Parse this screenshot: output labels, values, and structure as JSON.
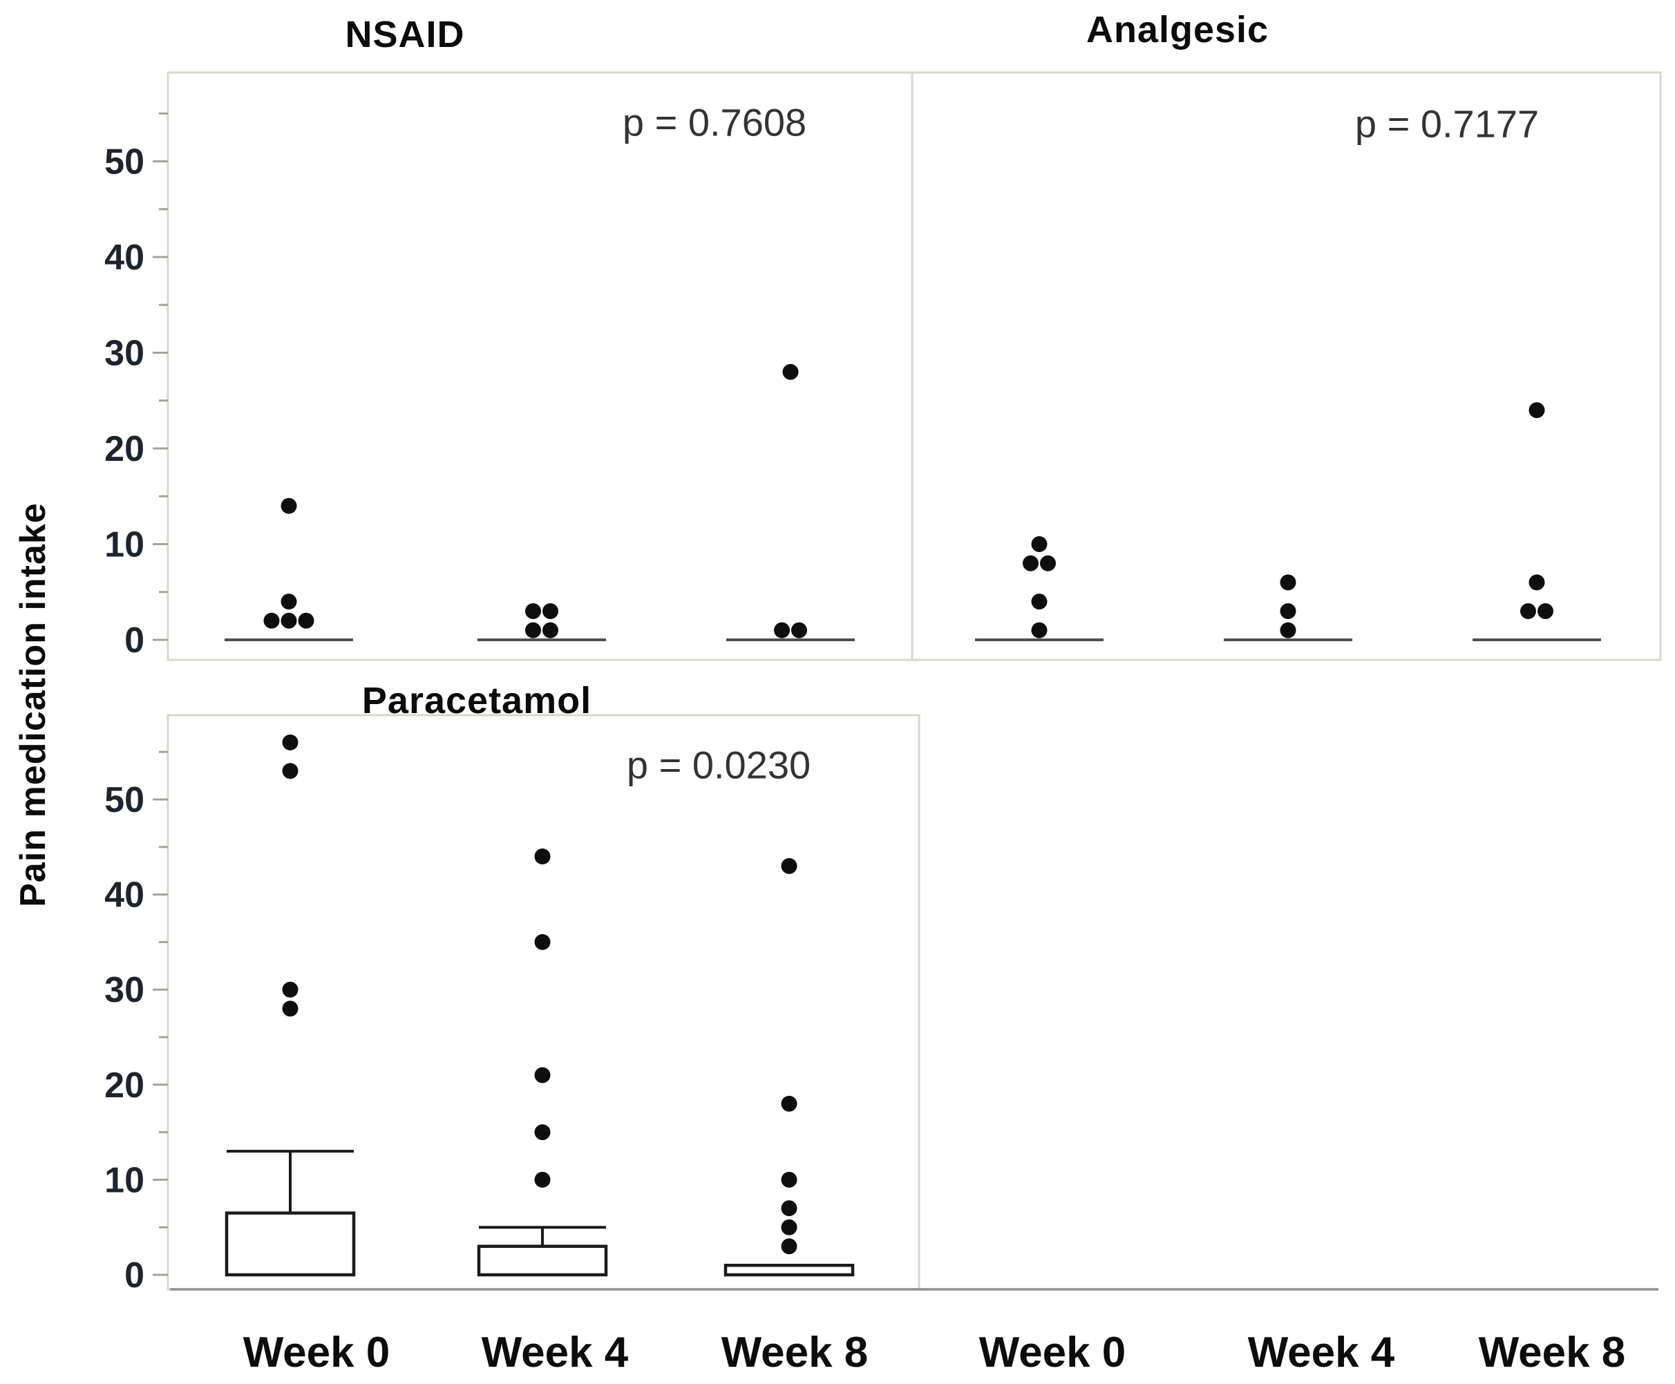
{
  "figure": {
    "ylabel": "Pain medication intake",
    "x_categories": [
      "Week 0",
      "Week 4",
      "Week 8"
    ],
    "y_ticks": [
      0,
      10,
      20,
      30,
      40,
      50
    ],
    "y_minor_ticks": [
      5,
      15,
      25,
      35,
      45,
      55
    ],
    "colors": {
      "dot": "#0e0e0e",
      "box_stroke": "#1a1a1a",
      "median_line": "#4f4f4f",
      "panel_border": "#d9d7cb",
      "axis_baseline": "#8f8f8f",
      "tick": "#a3a39b",
      "tick_label": "#1d242d",
      "week_label": "#0c0c0c"
    }
  },
  "chart_data": [
    {
      "type": "scatter",
      "panel": "top-left",
      "title": "NSAID",
      "p_label": "p = 0.7608",
      "categories": [
        "Week 0",
        "Week 4",
        "Week 8"
      ],
      "ylim": [
        0,
        58
      ],
      "grid": false,
      "median_at": [
        0,
        0,
        0
      ],
      "series": [
        {
          "category": "Week 0",
          "values": [
            14,
            4,
            2,
            2,
            2
          ]
        },
        {
          "category": "Week 4",
          "values": [
            3,
            3,
            1,
            1
          ]
        },
        {
          "category": "Week 8",
          "values": [
            28,
            1,
            1
          ]
        }
      ]
    },
    {
      "type": "scatter",
      "panel": "top-right",
      "title": "Analgesic",
      "p_label": "p = 0.7177",
      "categories": [
        "Week 0",
        "Week 4",
        "Week 8"
      ],
      "ylim": [
        0,
        58
      ],
      "grid": false,
      "median_at": [
        0,
        0,
        0
      ],
      "series": [
        {
          "category": "Week 0",
          "values": [
            10,
            8,
            8,
            4,
            1
          ]
        },
        {
          "category": "Week 4",
          "values": [
            6,
            3,
            1
          ]
        },
        {
          "category": "Week 8",
          "values": [
            24,
            6,
            3,
            3
          ]
        }
      ]
    },
    {
      "type": "box+scatter",
      "panel": "bottom-left",
      "title": "Paracetamol",
      "p_label": "p = 0.0230",
      "categories": [
        "Week 0",
        "Week 4",
        "Week 8"
      ],
      "ylim": [
        0,
        58
      ],
      "grid": false,
      "series": [
        {
          "category": "Week 0",
          "values": [
            56,
            53,
            30,
            28
          ],
          "box": {
            "q1": 0,
            "median": 0,
            "q3": 6.5,
            "whisker_high": 13
          }
        },
        {
          "category": "Week 4",
          "values": [
            44,
            35,
            21,
            15,
            10
          ],
          "box": {
            "q1": 0,
            "median": 0,
            "q3": 3,
            "whisker_high": 5
          }
        },
        {
          "category": "Week 8",
          "values": [
            43,
            18,
            10,
            7,
            5,
            3
          ],
          "box": {
            "q1": 0,
            "median": 0,
            "q3": 1,
            "whisker_high": 1
          }
        }
      ]
    }
  ]
}
